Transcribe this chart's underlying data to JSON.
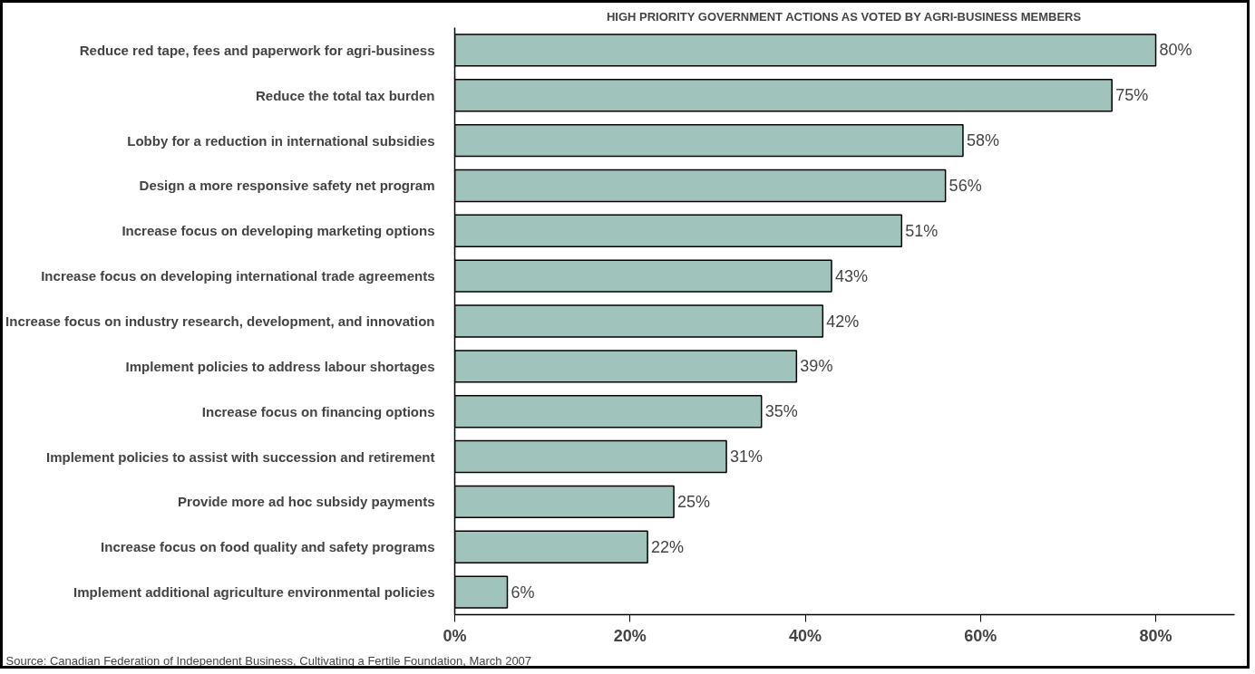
{
  "chart_data": {
    "type": "bar",
    "orientation": "horizontal",
    "title": "HIGH PRIORITY GOVERNMENT ACTIONS AS VOTED BY AGRI-BUSINESS MEMBERS",
    "categories": [
      "Reduce red tape, fees and paperwork for agri-business",
      "Reduce the total tax burden",
      "Lobby for a reduction in international subsidies",
      "Design a more responsive safety net program",
      "Increase focus on developing marketing options",
      "Increase focus on developing international trade agreements",
      "Increase focus on industry research, development, and innovation",
      "Implement policies to address labour shortages",
      "Increase focus on financing options",
      "Implement policies to assist with succession and retirement",
      "Provide more ad hoc subsidy payments",
      "Increase focus on food quality and safety programs",
      "Implement additional agriculture environmental policies"
    ],
    "values": [
      80,
      75,
      58,
      56,
      51,
      43,
      42,
      39,
      35,
      31,
      25,
      22,
      6
    ],
    "value_labels": [
      "80%",
      "75%",
      "58%",
      "56%",
      "51%",
      "43%",
      "42%",
      "39%",
      "35%",
      "31%",
      "25%",
      "22%",
      "6%"
    ],
    "color": "#a0c4bc",
    "xlim": [
      0,
      89
    ],
    "xticks": [
      {
        "value": 0,
        "label": "0%"
      },
      {
        "value": 20,
        "label": "20%"
      },
      {
        "value": 40,
        "label": "40%"
      },
      {
        "value": 60,
        "label": "60%"
      },
      {
        "value": 80,
        "label": "80%"
      }
    ],
    "grid": false,
    "annotations": [
      "Source: Canadian Federation of Independent Business, Cultivating a Fertile Foundation, March 2007"
    ]
  }
}
